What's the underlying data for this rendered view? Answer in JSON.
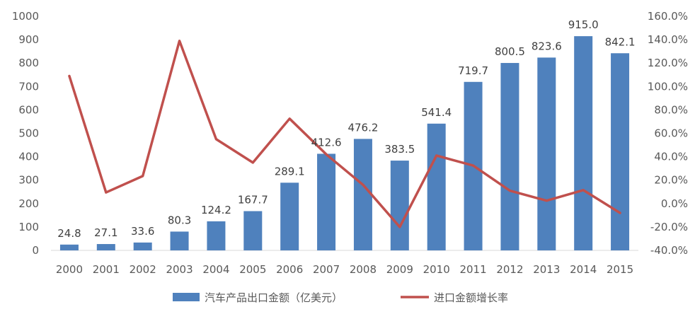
{
  "chart_data": {
    "type": "bar",
    "categories": [
      "2000",
      "2001",
      "2002",
      "2003",
      "2004",
      "2005",
      "2006",
      "2007",
      "2008",
      "2009",
      "2010",
      "2011",
      "2012",
      "2013",
      "2014",
      "2015"
    ],
    "series": [
      {
        "name": "汽车产品出口金额（亿美元）",
        "type": "bar",
        "axis": "left",
        "color": "#4f81bd",
        "values": [
          24.8,
          27.1,
          33.6,
          80.3,
          124.2,
          167.7,
          289.1,
          412.6,
          476.2,
          383.5,
          541.4,
          719.7,
          800.5,
          823.6,
          915.0,
          842.1
        ],
        "labels": [
          "24.8",
          "27.1",
          "33.6",
          "80.3",
          "124.2",
          "167.7",
          "289.1",
          "412.6",
          "476.2",
          "383.5",
          "541.4",
          "719.7",
          "800.5",
          "823.6",
          "915.0",
          "842.1"
        ]
      },
      {
        "name": "进口金额增长率",
        "type": "line",
        "axis": "right",
        "color": "#c0504d",
        "values": [
          109,
          9.5,
          23.5,
          139,
          55,
          35,
          72.5,
          42,
          16,
          -20,
          41,
          32.5,
          11,
          2.5,
          11.5,
          -8
        ]
      }
    ],
    "left_axis": {
      "ylim": [
        0,
        1000
      ],
      "ticks": [
        "0",
        "100",
        "200",
        "300",
        "400",
        "500",
        "600",
        "700",
        "800",
        "900",
        "1000"
      ]
    },
    "right_axis": {
      "ylim": [
        -40,
        160
      ],
      "ticks": [
        "-40.0%",
        "-20.0%",
        "0.0%",
        "20.0%",
        "40.0%",
        "60.0%",
        "80.0%",
        "100.0%",
        "120.0%",
        "140.0%",
        "160.0%"
      ]
    },
    "grid": false,
    "legend": "bottom-center"
  }
}
